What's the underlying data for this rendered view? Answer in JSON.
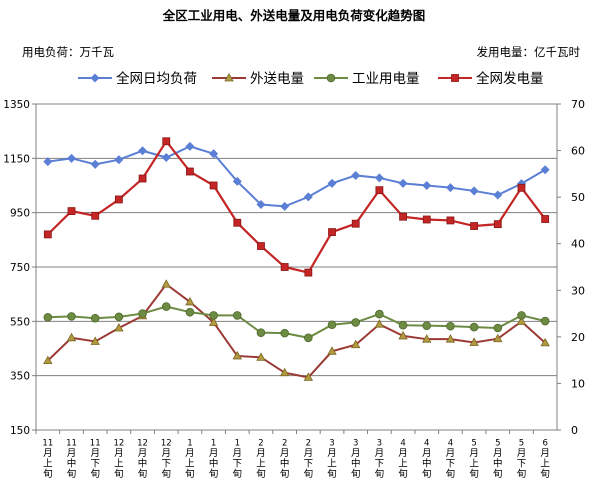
{
  "chart_data": {
    "type": "line",
    "title": "全区工业用电、外送电量及用电负荷变化趋势图",
    "left_unit_label": "用电负荷：万千瓦",
    "right_unit_label": "发用电量：亿千瓦时",
    "categories": [
      "11月上旬",
      "11月中旬",
      "11月下旬",
      "12月上旬",
      "12月中旬",
      "12月下旬",
      "1月上旬",
      "1月中旬",
      "1月下旬",
      "2月上旬",
      "2月中旬",
      "2月下旬",
      "3月上旬",
      "3月中旬",
      "3月下旬",
      "4月上旬",
      "4月中旬",
      "4月下旬",
      "5月上旬",
      "5月中旬",
      "5月下旬",
      "6月上旬"
    ],
    "category_labels": [
      [
        "11",
        "月",
        "上",
        "旬"
      ],
      [
        "11",
        "月",
        "中",
        "旬"
      ],
      [
        "11",
        "月",
        "下",
        "旬"
      ],
      [
        "12",
        "月",
        "上",
        "旬"
      ],
      [
        "12",
        "月",
        "中",
        "旬"
      ],
      [
        "12",
        "月",
        "下",
        "旬"
      ],
      [
        "1",
        "月",
        "上",
        "旬"
      ],
      [
        "1",
        "月",
        "中",
        "旬"
      ],
      [
        "1",
        "月",
        "下",
        "旬"
      ],
      [
        "2",
        "月",
        "上",
        "旬"
      ],
      [
        "2",
        "月",
        "中",
        "旬"
      ],
      [
        "2",
        "月",
        "下",
        "旬"
      ],
      [
        "3",
        "月",
        "上",
        "旬"
      ],
      [
        "3",
        "月",
        "中",
        "旬"
      ],
      [
        "3",
        "月",
        "下",
        "旬"
      ],
      [
        "4",
        "月",
        "上",
        "旬"
      ],
      [
        "4",
        "月",
        "中",
        "旬"
      ],
      [
        "4",
        "月",
        "下",
        "旬"
      ],
      [
        "5",
        "月",
        "上",
        "旬"
      ],
      [
        "5",
        "月",
        "中",
        "旬"
      ],
      [
        "5",
        "月",
        "下",
        "旬"
      ],
      [
        "6",
        "月",
        "上",
        "旬"
      ]
    ],
    "y_left": {
      "min": 150,
      "max": 1350,
      "ticks": [
        150,
        350,
        550,
        750,
        950,
        1150,
        1350
      ]
    },
    "y_right": {
      "min": 0,
      "max": 70,
      "ticks": [
        0,
        10,
        20,
        30,
        40,
        50,
        60,
        70
      ]
    },
    "grid": true,
    "legend_position": "top",
    "series": [
      {
        "name": "全网日均负荷",
        "axis": "left",
        "color": "#5b7fd4",
        "marker": "diamond",
        "values": [
          1138,
          1150,
          1128,
          1145,
          1178,
          1153,
          1194,
          1167,
          1065,
          980,
          973,
          1008,
          1058,
          1087,
          1078,
          1058,
          1050,
          1042,
          1030,
          1015,
          1057,
          1108
        ]
      },
      {
        "name": "外送电量",
        "axis": "right",
        "color": "#9b3a35",
        "marker": "triangle",
        "values": [
          14.9,
          19.8,
          19.0,
          21.9,
          24.5,
          31.3,
          27.5,
          23.1,
          15.9,
          15.6,
          12.3,
          11.3,
          16.9,
          18.3,
          22.7,
          20.2,
          19.5,
          19.5,
          18.8,
          19.6,
          23.3,
          18.7
        ]
      },
      {
        "name": "工业用电量",
        "axis": "right",
        "color": "#6d8b42",
        "marker": "circle",
        "values": [
          24.2,
          24.4,
          24.0,
          24.3,
          25.0,
          26.5,
          25.3,
          24.6,
          24.6,
          20.9,
          20.8,
          19.8,
          22.6,
          23.1,
          24.9,
          22.5,
          22.4,
          22.3,
          22.1,
          21.9,
          24.6,
          23.4
        ]
      },
      {
        "name": "全网发电量",
        "axis": "right",
        "color": "#c42525",
        "marker": "square",
        "values": [
          42.0,
          47.0,
          46.0,
          49.5,
          54.0,
          62.0,
          55.5,
          52.5,
          44.5,
          39.5,
          35.0,
          33.8,
          42.5,
          44.3,
          51.5,
          45.8,
          45.2,
          45.0,
          43.8,
          44.2,
          52.0,
          45.3
        ]
      }
    ]
  }
}
